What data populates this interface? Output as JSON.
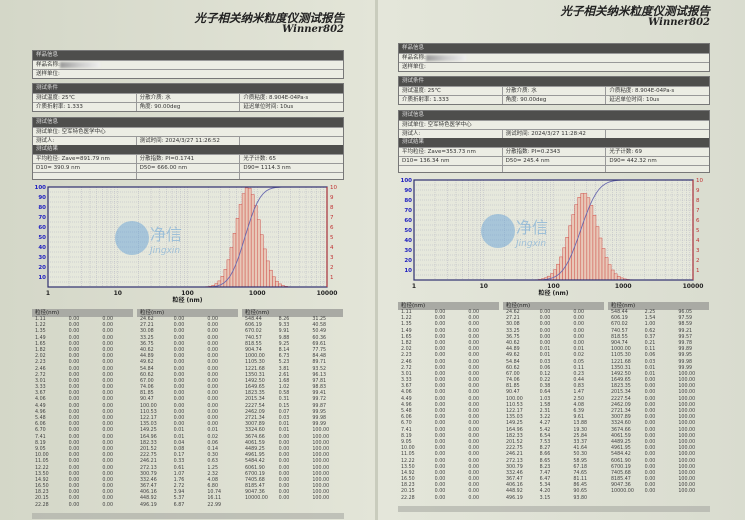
{
  "pages": [
    {
      "title": "光子相关纳米粒度仪测试报告",
      "model": "Winner802",
      "sample": {
        "header": "样品信息",
        "name_label": "样品名称:",
        "unit_label": "送样单位:"
      },
      "conditions": {
        "header": "测试条件",
        "items": [
          "测试温度: 25℃",
          "分散介质: 水",
          "介质粘度: 8.904E-04Pa·s",
          "介质折射率: 1.333",
          "角度: 90.00deg",
          "延迟单位时间: 10us"
        ]
      },
      "info": {
        "header": "测试信息",
        "unit": "测试单位: 空军特色医学中心",
        "tester": "测试人:",
        "time": "测试时间: 2024/3/27 11:26:52"
      },
      "results": {
        "header": "测试结果",
        "items": [
          "平均粒径: Zave=891.79 nm",
          "分散指数: PI=0.1741",
          "光子计数: 65",
          "D10= 390.9 nm",
          "D50= 666.00 nm",
          "D90= 1114.3 nm"
        ]
      },
      "table_header": "粒径(nm)"
    },
    {
      "title": "光子相关纳米粒度仪测试报告",
      "model": "Winner802",
      "sample": {
        "header": "样品信息",
        "name_label": "样品名称:",
        "unit_label": "送样单位:"
      },
      "conditions": {
        "header": "测试条件",
        "items": [
          "测试温度: 25℃",
          "分散介质: 水",
          "介质粘度: 8.904E-04Pa·s",
          "介质折射率: 1.333",
          "角度: 90.00deg",
          "延迟单位时间: 10us"
        ]
      },
      "info": {
        "header": "测试信息",
        "unit": "测试单位: 空军特色医学中心",
        "tester": "测试人:",
        "time": "测试时间: 2024/3/27 11:28:42"
      },
      "results": {
        "header": "测试结果",
        "items": [
          "平均粒径: Zave=353.73 nm",
          "分散指数: PI=0.2343",
          "光子计数: 69",
          "D10= 136.34 nm",
          "D50= 245.4 nm",
          "D90= 442.32 nm"
        ]
      },
      "table_header": "粒径(nm)"
    }
  ],
  "watermark": {
    "logo_text": "净信",
    "logo_sub": "Jingxin",
    "color": "#5b9bd5"
  },
  "colors": {
    "cumulative": "#6a6ab0",
    "histogram": "#d0504a",
    "left_axis": "#2020c0",
    "right_axis": "#c03030"
  },
  "sizes": [
    1.11,
    1.22,
    1.35,
    1.49,
    1.65,
    1.82,
    2.02,
    2.23,
    2.46,
    2.72,
    3.01,
    3.33,
    3.67,
    4.06,
    4.49,
    4.96,
    5.48,
    6.06,
    6.7,
    7.41,
    8.19,
    9.05,
    10.0,
    11.05,
    12.22,
    13.5,
    14.92,
    16.5,
    18.23,
    20.15,
    22.28,
    24.62,
    27.21,
    30.08,
    33.25,
    36.75,
    40.62,
    44.89,
    49.62,
    54.84,
    60.62,
    67.0,
    74.06,
    81.85,
    90.47,
    100.0,
    110.53,
    122.17,
    135.03,
    149.25,
    164.96,
    182.33,
    201.52,
    222.75,
    246.21,
    272.13,
    300.79,
    332.46,
    367.47,
    406.16,
    448.92,
    496.19,
    548.44,
    606.19,
    670.02,
    740.57,
    818.55,
    904.74,
    1000.0,
    1105.3,
    1221.68,
    1350.31,
    1492.5,
    1649.65,
    1823.35,
    2015.34,
    2227.54,
    2462.09,
    2721.34,
    3007.89,
    3324.6,
    3674.66,
    4061.59,
    4489.25,
    4961.95,
    5484.42,
    6061.9,
    6700.19,
    7405.68,
    8185.47,
    9047.36,
    10000.0
  ],
  "chart_data": [
    {
      "type": "bar",
      "xlabel": "粒径 (nm)",
      "x_scale": "log",
      "xlim": [
        1,
        10000
      ],
      "xticks": [
        "1",
        "10",
        "100",
        "1000",
        "10000"
      ],
      "ylim_left": [
        0,
        100
      ],
      "ylim_right": [
        0,
        10
      ],
      "yticks_left": [
        "10",
        "20",
        "30",
        "40",
        "50",
        "60",
        "70",
        "80",
        "90",
        "100"
      ],
      "yticks_right": [
        "1",
        "2",
        "3",
        "4",
        "5",
        "6",
        "7",
        "8",
        "9",
        "10"
      ],
      "grid": true,
      "diff": [
        0,
        0,
        0,
        0,
        0,
        0,
        0,
        0,
        0,
        0,
        0,
        0,
        0,
        0,
        0,
        0,
        0,
        0,
        0,
        0,
        0,
        0,
        0,
        0,
        0,
        0,
        0,
        0,
        0,
        0,
        0,
        0,
        0,
        0,
        0,
        0,
        0,
        0,
        0,
        0,
        0,
        0,
        0,
        0,
        0,
        0,
        0,
        0,
        0,
        0.01,
        0.01,
        0.04,
        0.08,
        0.17,
        0.33,
        0.61,
        1.07,
        1.76,
        2.72,
        3.94,
        5.37,
        6.87,
        8.26,
        9.33,
        9.91,
        9.88,
        9.25,
        8.14,
        6.73,
        5.23,
        3.81,
        2.61,
        1.68,
        1.02,
        0.58,
        0.31,
        0.15,
        0.07,
        0.03,
        0.01,
        0.01,
        0,
        0,
        0,
        0,
        0,
        0,
        0,
        0,
        0,
        0,
        0
      ],
      "cum": [
        0,
        0,
        0,
        0,
        0,
        0,
        0,
        0,
        0,
        0,
        0,
        0,
        0,
        0,
        0,
        0,
        0,
        0,
        0,
        0,
        0,
        0,
        0,
        0,
        0,
        0,
        0,
        0,
        0,
        0,
        0,
        0,
        0,
        0,
        0,
        0,
        0,
        0,
        0,
        0,
        0,
        0,
        0,
        0,
        0,
        0,
        0,
        0,
        0,
        0.01,
        0.02,
        0.06,
        0.14,
        0.3,
        0.63,
        1.25,
        2.32,
        4.08,
        6.8,
        10.74,
        16.11,
        22.99,
        31.25,
        40.58,
        50.49,
        60.36,
        69.61,
        77.75,
        84.48,
        89.71,
        93.52,
        96.13,
        97.81,
        98.83,
        99.41,
        99.72,
        99.87,
        99.95,
        99.98,
        99.99,
        100,
        100,
        100,
        100,
        100,
        100,
        100,
        100,
        100,
        100,
        100,
        100
      ]
    },
    {
      "type": "bar",
      "xlabel": "粒径 (nm)",
      "x_scale": "log",
      "xlim": [
        1,
        10000
      ],
      "xticks": [
        "1",
        "10",
        "100",
        "1000",
        "10000"
      ],
      "ylim_left": [
        0,
        100
      ],
      "ylim_right": [
        0,
        10
      ],
      "yticks_left": [
        "10",
        "20",
        "30",
        "40",
        "50",
        "60",
        "70",
        "80",
        "90",
        "100"
      ],
      "yticks_right": [
        "1",
        "2",
        "3",
        "4",
        "5",
        "6",
        "7",
        "8",
        "9",
        "10"
      ],
      "grid": true,
      "diff": [
        0,
        0,
        0,
        0,
        0,
        0,
        0,
        0,
        0,
        0,
        0,
        0,
        0,
        0,
        0,
        0,
        0,
        0,
        0,
        0,
        0,
        0,
        0,
        0,
        0,
        0,
        0,
        0,
        0,
        0,
        0,
        0,
        0,
        0,
        0,
        0,
        0,
        0.01,
        0.01,
        0.03,
        0.06,
        0.12,
        0.22,
        0.38,
        0.64,
        1.03,
        1.58,
        2.31,
        3.22,
        4.27,
        5.42,
        6.54,
        7.53,
        8.27,
        8.66,
        8.65,
        8.23,
        7.47,
        6.47,
        5.34,
        4.2,
        3.15,
        2.25,
        1.54,
        1.0,
        0.62,
        0.37,
        0.21,
        0.11,
        0.06,
        0.03,
        0.01,
        0.01,
        0,
        0,
        0,
        0,
        0,
        0,
        0,
        0,
        0,
        0,
        0,
        0,
        0,
        0,
        0,
        0,
        0,
        0,
        0
      ],
      "cum": [
        0,
        0,
        0,
        0,
        0,
        0,
        0,
        0,
        0,
        0,
        0,
        0,
        0,
        0,
        0,
        0,
        0,
        0,
        0,
        0,
        0,
        0,
        0,
        0,
        0,
        0,
        0,
        0,
        0,
        0,
        0,
        0,
        0,
        0,
        0,
        0,
        0,
        0.01,
        0.02,
        0.05,
        0.11,
        0.23,
        0.44,
        0.83,
        1.47,
        2.5,
        4.08,
        6.39,
        9.61,
        13.88,
        19.3,
        25.84,
        33.37,
        41.64,
        50.3,
        58.95,
        67.18,
        74.65,
        81.11,
        86.45,
        90.65,
        93.8,
        96.05,
        97.59,
        98.59,
        99.21,
        99.57,
        99.78,
        99.89,
        99.95,
        99.98,
        99.99,
        100,
        100,
        100,
        100,
        100,
        100,
        100,
        100,
        100,
        100,
        100,
        100,
        100,
        100,
        100,
        100,
        100,
        100,
        100,
        100
      ]
    }
  ]
}
